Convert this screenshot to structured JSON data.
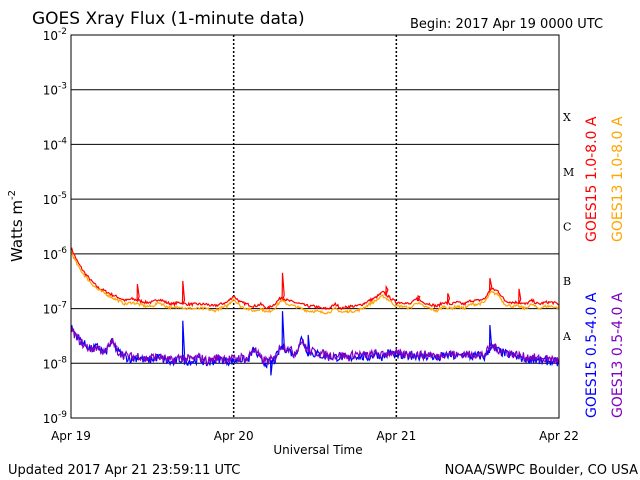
{
  "header": {
    "title": "GOES Xray Flux (1-minute data)",
    "begin": "Begin:  2017 Apr 19 0000 UTC"
  },
  "footer": {
    "updated": "Updated 2017 Apr 21 23:59:11 UTC",
    "credit": "NOAA/SWPC Boulder, CO USA"
  },
  "chart_data": {
    "type": "line",
    "title": "GOES Xray Flux (1-minute data)",
    "xlabel": "Universal Time",
    "ylabel": "Watts m",
    "ylabel_sup": "-2",
    "yscale": "log",
    "ylim": [
      1e-09,
      0.01
    ],
    "xlim": [
      0,
      72
    ],
    "x_unit": "hours since 2017 Apr 19 0000 UTC",
    "x_ticks": [
      {
        "x": 0,
        "label": "Apr 19"
      },
      {
        "x": 24,
        "label": "Apr 20"
      },
      {
        "x": 48,
        "label": "Apr 21"
      },
      {
        "x": 72,
        "label": "Apr 22"
      }
    ],
    "y_ticks": [
      {
        "exp": -2,
        "base": "10",
        "sup": "-2"
      },
      {
        "exp": -3,
        "base": "10",
        "sup": "-3"
      },
      {
        "exp": -4,
        "base": "10",
        "sup": "-4"
      },
      {
        "exp": -5,
        "base": "10",
        "sup": "-5"
      },
      {
        "exp": -6,
        "base": "10",
        "sup": "-6"
      },
      {
        "exp": -7,
        "base": "10",
        "sup": "-7"
      },
      {
        "exp": -8,
        "base": "10",
        "sup": "-8"
      },
      {
        "exp": -9,
        "base": "10",
        "sup": "-9"
      }
    ],
    "flare_classes": [
      {
        "label": "X",
        "exp": -3.5
      },
      {
        "label": "M",
        "exp": -4.5
      },
      {
        "label": "C",
        "exp": -5.5
      },
      {
        "label": "B",
        "exp": -6.5
      },
      {
        "label": "A",
        "exp": -7.5
      }
    ],
    "grid": "horizontal lines at each decade, dashed verticals at day boundaries",
    "legend_position": "right side, vertical",
    "series": [
      {
        "name": "GOES15 1.0-8.0 A",
        "color": "#ff0000",
        "band": "long",
        "x": [
          0,
          1,
          2,
          3,
          4,
          5,
          6,
          7,
          8,
          9,
          10,
          11,
          12,
          13,
          14,
          15,
          16,
          17,
          18,
          19,
          20,
          21,
          22,
          23,
          24,
          25,
          26,
          27,
          28,
          29,
          30,
          31,
          32,
          33,
          34,
          35,
          36,
          37,
          38,
          39,
          40,
          41,
          42,
          43,
          44,
          45,
          46,
          47,
          48,
          49,
          50,
          51,
          52,
          53,
          54,
          55,
          56,
          57,
          58,
          59,
          60,
          61,
          62,
          63,
          64,
          65,
          66,
          67,
          68,
          69,
          70,
          71,
          72
        ],
        "y": [
          1.3e-06,
          7e-07,
          4.5e-07,
          3.2e-07,
          2.4e-07,
          2.1e-07,
          1.8e-07,
          1.6e-07,
          1.4e-07,
          1.5e-07,
          1.4e-07,
          1.3e-07,
          1.3e-07,
          1.5e-07,
          1.3e-07,
          1.2e-07,
          1.3e-07,
          1.2e-07,
          1.2e-07,
          1.2e-07,
          1.2e-07,
          1.1e-07,
          1.2e-07,
          1.3e-07,
          1.7e-07,
          1.3e-07,
          1.2e-07,
          1.1e-07,
          1.2e-07,
          1e-07,
          1.2e-07,
          1.6e-07,
          1.4e-07,
          1.3e-07,
          1.2e-07,
          1.1e-07,
          1.1e-07,
          1e-07,
          1e-07,
          1.2e-07,
          1e-07,
          1.1e-07,
          1.1e-07,
          1.2e-07,
          1.4e-07,
          1.6e-07,
          2e-07,
          1.6e-07,
          1.3e-07,
          1.3e-07,
          1.2e-07,
          1.5e-07,
          1.3e-07,
          1.2e-07,
          1.1e-07,
          1.3e-07,
          1.2e-07,
          1.3e-07,
          1.2e-07,
          1.4e-07,
          1.4e-07,
          1.5e-07,
          2.3e-07,
          2.1e-07,
          1.4e-07,
          1.3e-07,
          1.3e-07,
          1.2e-07,
          1.4e-07,
          1.2e-07,
          1.3e-07,
          1.3e-07,
          1.2e-07
        ],
        "spikes": [
          {
            "x": 9.8,
            "y": 2.8e-07
          },
          {
            "x": 16.5,
            "y": 3.2e-07
          },
          {
            "x": 31.2,
            "y": 4.5e-07
          },
          {
            "x": 46.5,
            "y": 2.5e-07
          },
          {
            "x": 51.2,
            "y": 1.7e-07
          },
          {
            "x": 55.6,
            "y": 1.9e-07
          },
          {
            "x": 61.8,
            "y": 3.6e-07
          },
          {
            "x": 66.1,
            "y": 2.3e-07
          }
        ]
      },
      {
        "name": "GOES13 1.0-8.0 A",
        "color": "#ffa500",
        "band": "long",
        "x": [
          0,
          1,
          2,
          3,
          4,
          5,
          6,
          7,
          8,
          9,
          10,
          11,
          12,
          13,
          14,
          15,
          16,
          17,
          18,
          19,
          20,
          21,
          22,
          23,
          24,
          25,
          26,
          27,
          28,
          29,
          30,
          31,
          32,
          33,
          34,
          35,
          36,
          37,
          38,
          39,
          40,
          41,
          42,
          43,
          44,
          45,
          46,
          47,
          48,
          49,
          50,
          51,
          52,
          53,
          54,
          55,
          56,
          57,
          58,
          59,
          60,
          61,
          62,
          63,
          64,
          65,
          66,
          67,
          68,
          69,
          70,
          71,
          72
        ],
        "y": [
          1.1e-06,
          6e-07,
          4e-07,
          2.9e-07,
          2.2e-07,
          1.9e-07,
          1.6e-07,
          1.4e-07,
          1.2e-07,
          1.3e-07,
          1.2e-07,
          1.1e-07,
          1.1e-07,
          1.3e-07,
          1.1e-07,
          1e-07,
          1.1e-07,
          1e-07,
          1e-07,
          1e-07,
          1e-07,
          9e-08,
          1e-07,
          1.1e-07,
          1.5e-07,
          1.1e-07,
          1e-07,
          9e-08,
          1e-07,
          8.5e-08,
          1e-07,
          1.4e-07,
          1.2e-07,
          1.1e-07,
          1e-07,
          9e-08,
          9e-08,
          8.5e-08,
          8.5e-08,
          1e-07,
          8.5e-08,
          9e-08,
          9e-08,
          1e-07,
          1.2e-07,
          1.4e-07,
          1.7e-07,
          1.4e-07,
          1.1e-07,
          1.1e-07,
          1e-07,
          1.3e-07,
          1.1e-07,
          1e-07,
          9e-08,
          1.1e-07,
          1e-07,
          1.1e-07,
          1e-07,
          1.2e-07,
          1.2e-07,
          1.3e-07,
          2e-07,
          1.8e-07,
          1.2e-07,
          1.1e-07,
          1.1e-07,
          1e-07,
          1.2e-07,
          1e-07,
          1.1e-07,
          1.1e-07,
          1e-07
        ]
      },
      {
        "name": "GOES15 0.5-4.0 A",
        "color": "#0000ff",
        "band": "short",
        "x": [
          0,
          1,
          2,
          3,
          4,
          5,
          6,
          7,
          8,
          9,
          10,
          11,
          12,
          13,
          14,
          15,
          16,
          17,
          18,
          19,
          20,
          21,
          22,
          23,
          24,
          25,
          26,
          27,
          28,
          29,
          30,
          31,
          32,
          33,
          34,
          35,
          36,
          37,
          38,
          39,
          40,
          41,
          42,
          43,
          44,
          45,
          46,
          47,
          48,
          49,
          50,
          51,
          52,
          53,
          54,
          55,
          56,
          57,
          58,
          59,
          60,
          61,
          62,
          63,
          64,
          65,
          66,
          67,
          68,
          69,
          70,
          71,
          72
        ],
        "y": [
          4.5e-08,
          3e-08,
          2.2e-08,
          1.8e-08,
          2e-08,
          1.5e-08,
          2.5e-08,
          1.6e-08,
          1.3e-08,
          1.2e-08,
          1.3e-08,
          1.1e-08,
          1.2e-08,
          1.3e-08,
          1.1e-08,
          1e-08,
          1.2e-08,
          1.1e-08,
          1.1e-08,
          1.2e-08,
          1e-08,
          1.1e-08,
          1.2e-08,
          1.1e-08,
          1.1e-08,
          1.2e-08,
          1.1e-08,
          1.8e-08,
          1.1e-08,
          1e-08,
          1.1e-08,
          2e-08,
          1.8e-08,
          1.4e-08,
          2.8e-08,
          1.6e-08,
          1.5e-08,
          1.4e-08,
          1.3e-08,
          1.3e-08,
          1.3e-08,
          1.2e-08,
          1.4e-08,
          1.3e-08,
          1.3e-08,
          1.5e-08,
          1.3e-08,
          1.6e-08,
          1.4e-08,
          1.3e-08,
          1.4e-08,
          1.4e-08,
          1.3e-08,
          1.4e-08,
          1.2e-08,
          1.4e-08,
          1.4e-08,
          1.3e-08,
          1.5e-08,
          1.3e-08,
          1.4e-08,
          1.3e-08,
          2e-08,
          1.7e-08,
          1.5e-08,
          1.4e-08,
          1.3e-08,
          1.2e-08,
          1.2e-08,
          1.1e-08,
          1.1e-08,
          1.1e-08,
          1e-08
        ],
        "spikes": [
          {
            "x": 16.5,
            "y": 6e-08
          },
          {
            "x": 31.2,
            "y": 9e-08
          },
          {
            "x": 29.5,
            "y": 6e-09
          },
          {
            "x": 61.8,
            "y": 5e-08
          },
          {
            "x": 35.0,
            "y": 3.3e-08
          }
        ]
      },
      {
        "name": "GOES13 0.5-4.0 A",
        "color": "#8000c0",
        "band": "short",
        "x": [
          0,
          1,
          2,
          3,
          4,
          5,
          6,
          7,
          8,
          9,
          10,
          11,
          12,
          13,
          14,
          15,
          16,
          17,
          18,
          19,
          20,
          21,
          22,
          23,
          24,
          25,
          26,
          27,
          28,
          29,
          30,
          31,
          32,
          33,
          34,
          35,
          36,
          37,
          38,
          39,
          40,
          41,
          42,
          43,
          44,
          45,
          46,
          47,
          48,
          49,
          50,
          51,
          52,
          53,
          54,
          55,
          56,
          57,
          58,
          59,
          60,
          61,
          62,
          63,
          64,
          65,
          66,
          67,
          68,
          69,
          70,
          71,
          72
        ],
        "y": [
          4.2e-08,
          2.8e-08,
          2.1e-08,
          1.8e-08,
          2e-08,
          1.5e-08,
          2.6e-08,
          1.6e-08,
          1.4e-08,
          1.3e-08,
          1.4e-08,
          1.2e-08,
          1.3e-08,
          1.3e-08,
          1.2e-08,
          1.1e-08,
          1.3e-08,
          1.2e-08,
          1.2e-08,
          1.3e-08,
          1.1e-08,
          1.2e-08,
          1.3e-08,
          1.2e-08,
          1.2e-08,
          1.3e-08,
          1.2e-08,
          1.9e-08,
          1.2e-08,
          1.1e-08,
          1.2e-08,
          2.1e-08,
          1.9e-08,
          1.5e-08,
          2.6e-08,
          1.7e-08,
          1.6e-08,
          1.5e-08,
          1.4e-08,
          1.4e-08,
          1.4e-08,
          1.3e-08,
          1.5e-08,
          1.4e-08,
          1.4e-08,
          1.5e-08,
          1.4e-08,
          1.6e-08,
          1.5e-08,
          1.4e-08,
          1.5e-08,
          1.5e-08,
          1.4e-08,
          1.5e-08,
          1.3e-08,
          1.5e-08,
          1.5e-08,
          1.4e-08,
          1.5e-08,
          1.4e-08,
          1.5e-08,
          1.4e-08,
          2.1e-08,
          1.8e-08,
          1.6e-08,
          1.5e-08,
          1.4e-08,
          1.3e-08,
          1.3e-08,
          1.2e-08,
          1.2e-08,
          1.2e-08,
          1.1e-08
        ]
      }
    ],
    "legend": [
      {
        "text": "GOES15 1.0-8.0 A",
        "color": "#ff0000"
      },
      {
        "text": "GOES13 1.0-8.0 A",
        "color": "#ffa500"
      },
      {
        "text": "GOES15 0.5-4.0 A",
        "color": "#0000ff"
      },
      {
        "text": "GOES13 0.5-4.0 A",
        "color": "#8000c0"
      }
    ]
  }
}
